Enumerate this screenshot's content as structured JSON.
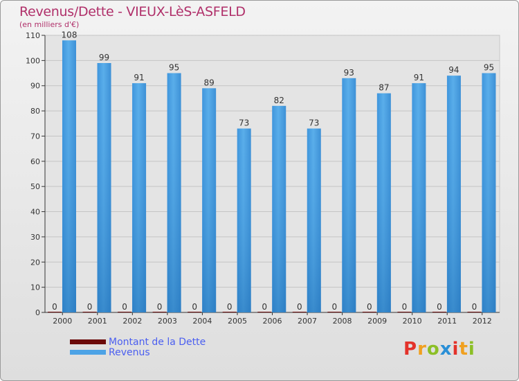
{
  "title": "Revenus/Dette - VIEUX-LèS-ASFELD",
  "subtitle": "(en milliers d'€)",
  "logo": {
    "text": "Proxiti",
    "letters": [
      {
        "ch": "P",
        "color": "#e3322b"
      },
      {
        "ch": "r",
        "color": "#f0a020"
      },
      {
        "ch": "o",
        "color": "#8cbf26"
      },
      {
        "ch": "x",
        "color": "#2a8fd6"
      },
      {
        "ch": "i",
        "color": "#e3322b"
      },
      {
        "ch": "t",
        "color": "#f0a020"
      },
      {
        "ch": "i",
        "color": "#8cbf26"
      }
    ]
  },
  "legend": [
    {
      "label": "Montant de la Dette",
      "color": "#6b0a0a"
    },
    {
      "label": "Revenus",
      "color": "#4da3e6"
    }
  ],
  "chart_data": {
    "type": "bar",
    "title": "Revenus/Dette - VIEUX-LèS-ASFELD",
    "ylabel": "(en milliers d'€)",
    "xlabel": "",
    "categories": [
      "2000",
      "2001",
      "2002",
      "2003",
      "2004",
      "2005",
      "2006",
      "2007",
      "2008",
      "2009",
      "2010",
      "2011",
      "2012"
    ],
    "series": [
      {
        "name": "Montant de la Dette",
        "color": "#6b0a0a",
        "values": [
          0,
          0,
          0,
          0,
          0,
          0,
          0,
          0,
          0,
          0,
          0,
          0,
          0
        ]
      },
      {
        "name": "Revenus",
        "color": "#4da3e6",
        "values": [
          108,
          99,
          91,
          95,
          89,
          73,
          82,
          73,
          93,
          87,
          91,
          94,
          95
        ]
      }
    ],
    "ylim": [
      0,
      110
    ],
    "yticks": [
      0,
      10,
      20,
      30,
      40,
      50,
      60,
      70,
      80,
      90,
      100,
      110
    ],
    "grid": true,
    "legend_position": "bottom-left"
  }
}
